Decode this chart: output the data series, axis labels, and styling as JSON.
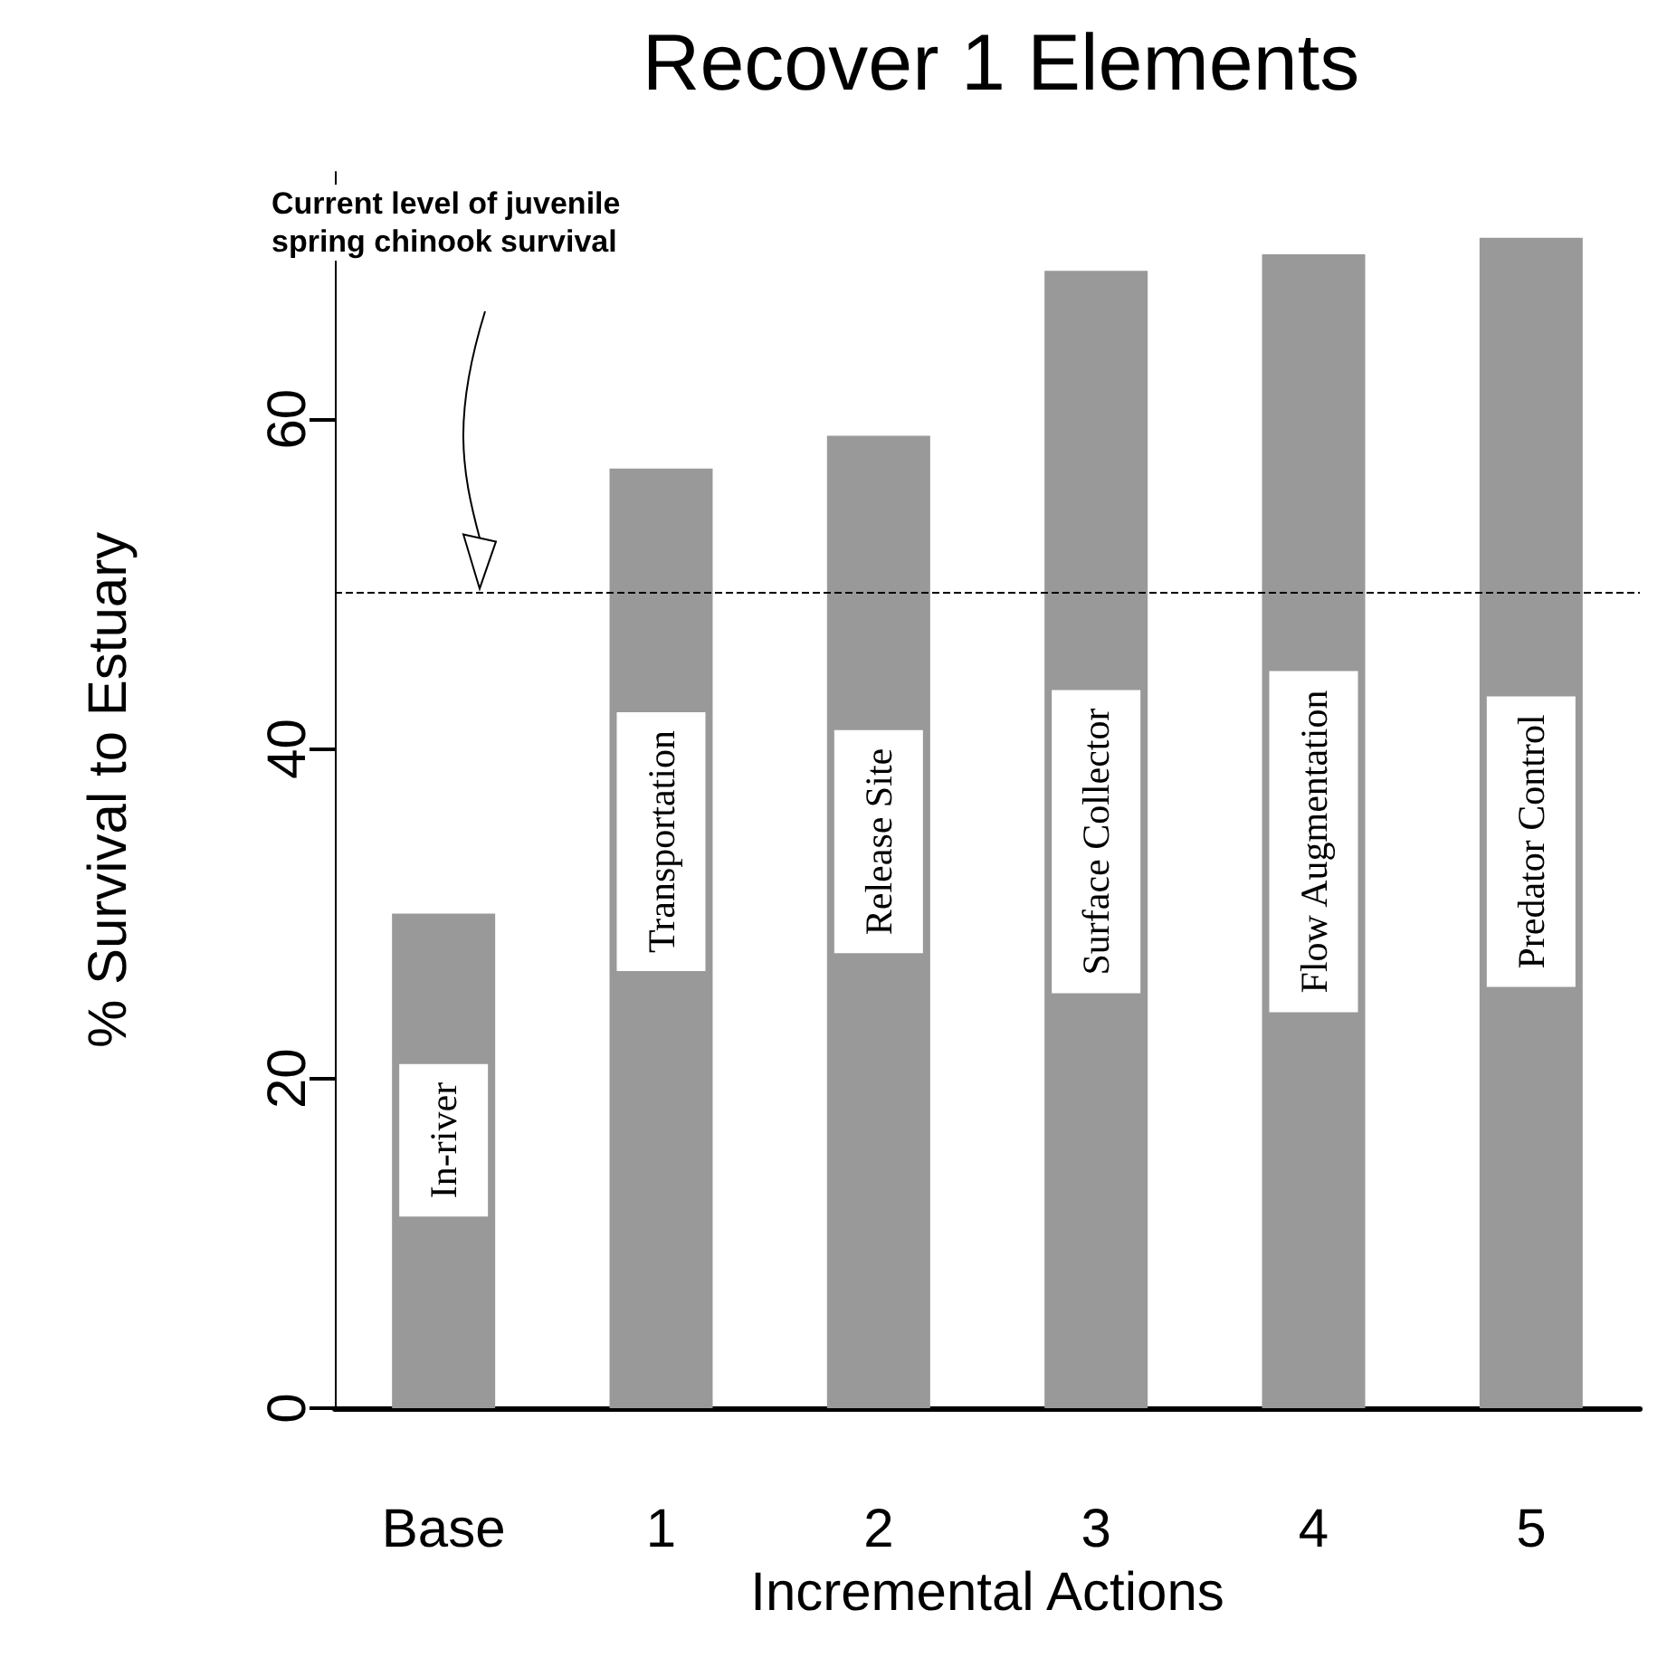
{
  "chart_data": {
    "type": "bar",
    "title": "Recover 1 Elements",
    "xlabel": "Incremental Actions",
    "ylabel": "% Survival to Estuary",
    "categories": [
      "Base",
      "1",
      "2",
      "3",
      "4",
      "5"
    ],
    "values": [
      30,
      57,
      59,
      69,
      70,
      71
    ],
    "color": "#999999",
    "ylim": [
      0,
      75
    ],
    "yticks": [
      0,
      20,
      40,
      60
    ],
    "grid": false,
    "ref_lines": [
      {
        "axis": "y",
        "value": 49.5,
        "label": "Current level of juvenile\nspring chinook survival",
        "color": "#000000",
        "line_style": "dashed"
      }
    ],
    "annotations": [
      "In-river",
      "Transportation",
      "Release Site",
      "Surface Collector",
      "Flow Augmentation",
      "Predator Control"
    ]
  }
}
